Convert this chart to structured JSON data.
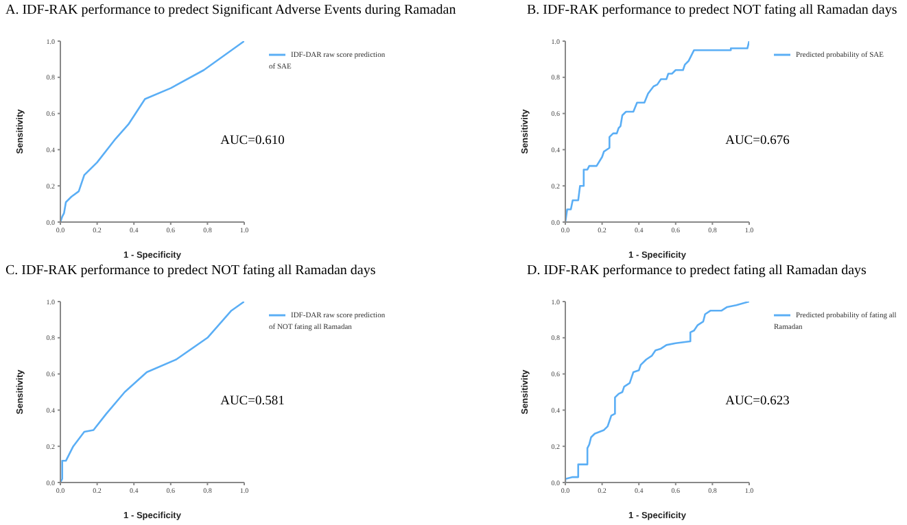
{
  "chart_data": [
    {
      "type": "line",
      "title": "A. IDF-RAK performance to predect Significant Adverse Events during Ramadan",
      "xlabel": "1 - Specificity",
      "ylabel": "Sensitivity",
      "annotations": [
        "AUC=0.610"
      ],
      "legend": "top right",
      "marker": "none",
      "line_style": "solid",
      "xlim": [
        0,
        1
      ],
      "ylim": [
        0,
        1
      ],
      "xticks": [
        {
          "value": 0,
          "label": "0.0"
        },
        {
          "value": 0.2,
          "label": "0.2"
        },
        {
          "value": 0.4,
          "label": "0.4"
        },
        {
          "value": 0.6,
          "label": "0.6"
        },
        {
          "value": 0.8,
          "label": "0.8"
        },
        {
          "value": 1,
          "label": "1.0"
        }
      ],
      "yticks": [
        {
          "value": 0,
          "label": "0.0"
        },
        {
          "value": 0.2,
          "label": "0.2"
        },
        {
          "value": 0.4,
          "label": "0.4"
        },
        {
          "value": 0.6,
          "label": "0.6"
        },
        {
          "value": 0.8,
          "label": "0.8"
        },
        {
          "value": 1,
          "label": "1.0"
        }
      ],
      "series": [
        {
          "name": "IDF-DAR raw score prediction of SAE",
          "color": "#5aaef5",
          "x": [
            0,
            0.01,
            0.02,
            0.03,
            0.06,
            0.1,
            0.13,
            0.2,
            0.3,
            0.37,
            0.46,
            0.6,
            0.78,
            1
          ],
          "values": [
            0,
            0.03,
            0.05,
            0.11,
            0.14,
            0.17,
            0.26,
            0.33,
            0.46,
            0.54,
            0.68,
            0.74,
            0.84,
            1
          ]
        }
      ]
    },
    {
      "type": "line",
      "title": "B. IDF-RAK performance to predect NOT fating all Ramadan days",
      "xlabel": "1 - Specificity",
      "ylabel": "Sensitivity",
      "annotations": [
        "AUC=0.676"
      ],
      "legend": "top right",
      "marker": "none",
      "line_style": "solid",
      "xlim": [
        0,
        1
      ],
      "ylim": [
        0,
        1
      ],
      "xticks": [
        {
          "value": 0,
          "label": "0.0"
        },
        {
          "value": 0.2,
          "label": "0.2"
        },
        {
          "value": 0.4,
          "label": "0.4"
        },
        {
          "value": 0.6,
          "label": "0.6"
        },
        {
          "value": 0.8,
          "label": "0.8"
        },
        {
          "value": 1,
          "label": "1.0"
        }
      ],
      "yticks": [
        {
          "value": 0,
          "label": "0.0"
        },
        {
          "value": 0.2,
          "label": "0.2"
        },
        {
          "value": 0.4,
          "label": "0.4"
        },
        {
          "value": 0.6,
          "label": "0.6"
        },
        {
          "value": 0.8,
          "label": "0.8"
        },
        {
          "value": 1,
          "label": "1.0"
        }
      ],
      "series": [
        {
          "name": "Predicted probability of SAE",
          "color": "#5aaef5",
          "x": [
            0,
            0.01,
            0.03,
            0.04,
            0.07,
            0.08,
            0.1,
            0.1,
            0.12,
            0.13,
            0.17,
            0.2,
            0.21,
            0.24,
            0.24,
            0.26,
            0.28,
            0.29,
            0.3,
            0.31,
            0.33,
            0.37,
            0.39,
            0.43,
            0.45,
            0.48,
            0.5,
            0.52,
            0.55,
            0.56,
            0.58,
            0.6,
            0.64,
            0.65,
            0.67,
            0.7,
            0.9,
            0.9,
            0.99,
            1
          ],
          "values": [
            0,
            0.07,
            0.07,
            0.12,
            0.12,
            0.2,
            0.2,
            0.29,
            0.29,
            0.31,
            0.31,
            0.36,
            0.39,
            0.41,
            0.47,
            0.49,
            0.49,
            0.52,
            0.53,
            0.59,
            0.61,
            0.61,
            0.66,
            0.66,
            0.71,
            0.75,
            0.76,
            0.79,
            0.79,
            0.82,
            0.82,
            0.84,
            0.84,
            0.87,
            0.89,
            0.95,
            0.95,
            0.96,
            0.96,
            1
          ]
        }
      ]
    },
    {
      "type": "line",
      "title": "C. IDF-RAK performance to predect NOT fating all Ramadan days",
      "xlabel": "1 - Specificity",
      "ylabel": "Sensitivity",
      "annotations": [
        "AUC=0.581"
      ],
      "legend": "top right",
      "marker": "none",
      "line_style": "solid",
      "xlim": [
        0,
        1
      ],
      "ylim": [
        0,
        1
      ],
      "xticks": [
        {
          "value": 0,
          "label": "0.0"
        },
        {
          "value": 0.2,
          "label": "0.2"
        },
        {
          "value": 0.4,
          "label": "0.4"
        },
        {
          "value": 0.6,
          "label": "0.6"
        },
        {
          "value": 0.8,
          "label": "0.8"
        },
        {
          "value": 1,
          "label": "1.0"
        }
      ],
      "yticks": [
        {
          "value": 0,
          "label": "0.0"
        },
        {
          "value": 0.2,
          "label": "0.2"
        },
        {
          "value": 0.4,
          "label": "0.4"
        },
        {
          "value": 0.6,
          "label": "0.6"
        },
        {
          "value": 0.8,
          "label": "0.8"
        },
        {
          "value": 1,
          "label": "1.0"
        }
      ],
      "series": [
        {
          "name": "IDF-DAR raw score prediction of NOT fating all Ramadan",
          "color": "#5aaef5",
          "x": [
            0,
            0.01,
            0.01,
            0.03,
            0.07,
            0.13,
            0.18,
            0.25,
            0.35,
            0.47,
            0.63,
            0.8,
            0.93,
            1
          ],
          "values": [
            0,
            0.02,
            0.12,
            0.12,
            0.2,
            0.28,
            0.29,
            0.38,
            0.5,
            0.61,
            0.68,
            0.8,
            0.95,
            1
          ]
        }
      ]
    },
    {
      "type": "line",
      "title": "D. IDF-RAK performance to predect fating all Ramadan days",
      "xlabel": "1 - Specificity",
      "ylabel": "Sensitivity",
      "annotations": [
        "AUC=0.623"
      ],
      "legend": "top right",
      "marker": "none",
      "line_style": "solid",
      "xlim": [
        0,
        1
      ],
      "ylim": [
        0,
        1
      ],
      "xticks": [
        {
          "value": 0,
          "label": "0.0"
        },
        {
          "value": 0.2,
          "label": "0.2"
        },
        {
          "value": 0.4,
          "label": "0.4"
        },
        {
          "value": 0.6,
          "label": "0.6"
        },
        {
          "value": 0.8,
          "label": "0.8"
        },
        {
          "value": 1,
          "label": "1.0"
        }
      ],
      "yticks": [
        {
          "value": 0,
          "label": "0.0"
        },
        {
          "value": 0.2,
          "label": "0.2"
        },
        {
          "value": 0.4,
          "label": "0.4"
        },
        {
          "value": 0.6,
          "label": "0.6"
        },
        {
          "value": 0.8,
          "label": "0.8"
        },
        {
          "value": 1,
          "label": "1.0"
        }
      ],
      "series": [
        {
          "name": "Predicted probability of fating all Ramadan",
          "color": "#5aaef5",
          "x": [
            0,
            0,
            0.04,
            0.07,
            0.07,
            0.12,
            0.12,
            0.13,
            0.14,
            0.16,
            0.21,
            0.23,
            0.24,
            0.25,
            0.27,
            0.27,
            0.29,
            0.31,
            0.32,
            0.35,
            0.36,
            0.37,
            0.4,
            0.41,
            0.44,
            0.47,
            0.49,
            0.52,
            0.55,
            0.6,
            0.68,
            0.68,
            0.7,
            0.72,
            0.75,
            0.76,
            0.79,
            0.85,
            0.88,
            0.93,
            1
          ],
          "values": [
            0,
            0.02,
            0.03,
            0.03,
            0.1,
            0.1,
            0.19,
            0.21,
            0.25,
            0.27,
            0.29,
            0.31,
            0.34,
            0.37,
            0.38,
            0.47,
            0.49,
            0.5,
            0.53,
            0.55,
            0.58,
            0.61,
            0.62,
            0.65,
            0.68,
            0.7,
            0.73,
            0.74,
            0.76,
            0.77,
            0.78,
            0.83,
            0.84,
            0.87,
            0.89,
            0.93,
            0.95,
            0.95,
            0.97,
            0.98,
            1
          ]
        }
      ]
    }
  ]
}
